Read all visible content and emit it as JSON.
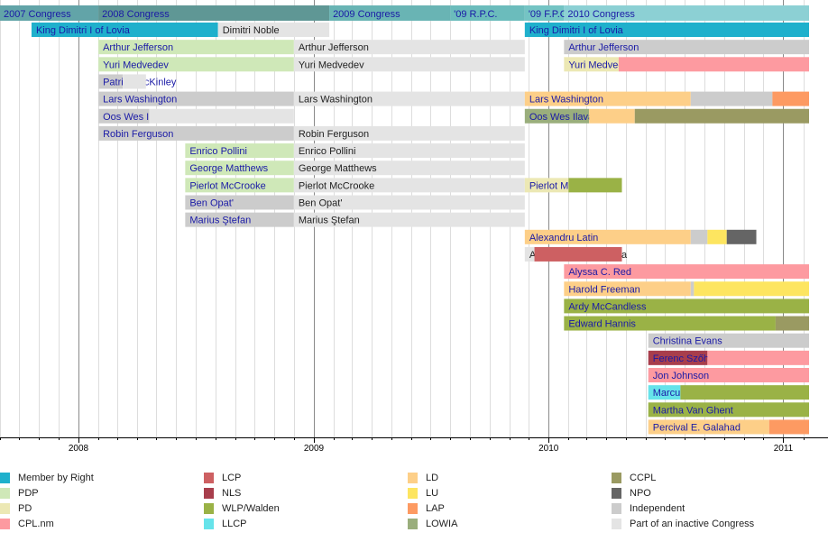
{
  "chart_data": {
    "type": "timeline",
    "x_range": [
      "2007-09-01",
      "2011-02-10"
    ],
    "x_ticks": [
      "2008",
      "2009",
      "2010",
      "2011"
    ],
    "parties": [
      {
        "key": "mbr",
        "name": "Member by Right",
        "color": "#1fb0cc"
      },
      {
        "key": "pdp",
        "name": "PDP",
        "color": "#cfe8b8"
      },
      {
        "key": "pd",
        "name": "PD",
        "color": "#ece8b4"
      },
      {
        "key": "cpl",
        "name": "CPL.nm",
        "color": "#fd9aa0"
      },
      {
        "key": "lcp",
        "name": "LCP",
        "color": "#cd6062"
      },
      {
        "key": "nls",
        "name": "NLS",
        "color": "#a83e4c"
      },
      {
        "key": "wlp",
        "name": "WLP/Walden",
        "color": "#9ab246"
      },
      {
        "key": "llcp",
        "name": "LLCP",
        "color": "#66e3ea"
      },
      {
        "key": "ld",
        "name": "LD",
        "color": "#fdcf88"
      },
      {
        "key": "lu",
        "name": "LU",
        "color": "#fde560"
      },
      {
        "key": "lap",
        "name": "LAP",
        "color": "#fd9a62"
      },
      {
        "key": "lowia",
        "name": "LOWIA",
        "color": "#9aae7c"
      },
      {
        "key": "ccpl",
        "name": "CCPL",
        "color": "#9a9a62"
      },
      {
        "key": "npo",
        "name": "NPO",
        "color": "#656565"
      },
      {
        "key": "ind",
        "name": "Independent",
        "color": "#cccccc"
      },
      {
        "key": "inactive",
        "name": "Part of an inactive Congress",
        "color": "#e4e4e4"
      }
    ],
    "congresses": [
      {
        "label": "2007 Congress",
        "start": "2007-09-01",
        "end": "2008-02-01",
        "color": "#62a4a8"
      },
      {
        "label": "2008 Congress",
        "start": "2008-02-01",
        "end": "2009-01-25",
        "color": "#5f9795"
      },
      {
        "label": "2009 Congress",
        "start": "2009-01-25",
        "end": "2009-08-01",
        "color": "#69b4b4"
      },
      {
        "label": "'09 R.P.C.",
        "start": "2009-08-01",
        "end": "2009-11-25",
        "color": "#6bbcbc"
      },
      {
        "label": "'09 F.P.C.",
        "start": "2009-11-25",
        "end": "2010-01-25",
        "color": "#74c4c4"
      },
      {
        "label": "2010 Congress",
        "start": "2010-01-25",
        "end": "2011-02-10",
        "color": "#8cd0d4"
      }
    ],
    "rows": [
      {
        "segments": [
          {
            "label": "King Dimitri I of Lovia",
            "start": "2007-10-20",
            "end": "2008-08-05",
            "party": "mbr"
          },
          {
            "label": "Dimitri Noble",
            "start": "2008-08-05",
            "end": "2009-01-25",
            "party": "inactive"
          },
          {
            "label": "King Dimitri I of Lovia",
            "start": "2009-11-25",
            "end": "2011-02-10",
            "party": "mbr"
          }
        ]
      },
      {
        "segments": [
          {
            "label": "Arthur Jefferson",
            "start": "2008-02-01",
            "end": "2008-12-01",
            "party": "pdp"
          },
          {
            "label": "Arthur Jefferson",
            "start": "2008-12-01",
            "end": "2009-11-25",
            "party": "inactive"
          },
          {
            "label": "Arthur Jefferson",
            "start": "2010-01-25",
            "end": "2011-02-10",
            "party": "ind"
          }
        ]
      },
      {
        "segments": [
          {
            "label": "Yuri Medvedev",
            "start": "2008-02-01",
            "end": "2008-12-01",
            "party": "pdp"
          },
          {
            "label": "Yuri Medvedev",
            "start": "2008-12-01",
            "end": "2009-11-25",
            "party": "inactive"
          },
          {
            "label": "Yuri Medvedev",
            "start": "2010-01-25",
            "end": "2010-04-20",
            "party": "pd"
          },
          {
            "label": "",
            "start": "2010-04-20",
            "end": "2011-02-10",
            "party": "cpl"
          }
        ]
      },
      {
        "segments": [
          {
            "label": "Patrick McKinley",
            "start": "2008-02-01",
            "end": "2008-03-10",
            "party": "ind"
          },
          {
            "label": "",
            "start": "2008-03-10",
            "end": "2008-04-15",
            "party": "inactive"
          }
        ]
      },
      {
        "segments": [
          {
            "label": "Lars Washington",
            "start": "2008-02-01",
            "end": "2008-12-01",
            "party": "ind"
          },
          {
            "label": "Lars Washington",
            "start": "2008-12-01",
            "end": "2009-11-25",
            "party": "inactive"
          },
          {
            "label": "Lars Washington",
            "start": "2009-11-25",
            "end": "2010-08-10",
            "party": "ld"
          },
          {
            "label": "",
            "start": "2010-08-10",
            "end": "2010-12-15",
            "party": "ind"
          },
          {
            "label": "",
            "start": "2010-12-15",
            "end": "2011-02-10",
            "party": "lap"
          }
        ]
      },
      {
        "segments": [
          {
            "label": "Oos Wes Ilava",
            "start": "2008-02-01",
            "end": "2008-04-20",
            "party": "ind"
          },
          {
            "label": "",
            "start": "2008-04-20",
            "end": "2008-12-01",
            "party": "inactive"
          },
          {
            "label": "Oos Wes Ilava",
            "start": "2009-11-25",
            "end": "2010-03-05",
            "party": "lowia"
          },
          {
            "label": "",
            "start": "2010-03-05",
            "end": "2010-05-15",
            "party": "ld"
          },
          {
            "label": "",
            "start": "2010-05-15",
            "end": "2011-02-10",
            "party": "ccpl"
          }
        ]
      },
      {
        "segments": [
          {
            "label": "Robin Ferguson",
            "start": "2008-02-01",
            "end": "2008-12-01",
            "party": "ind"
          },
          {
            "label": "Robin Ferguson",
            "start": "2008-12-01",
            "end": "2009-11-25",
            "party": "inactive"
          }
        ]
      },
      {
        "segments": [
          {
            "label": "Enrico Pollini",
            "start": "2008-06-15",
            "end": "2008-12-01",
            "party": "pdp"
          },
          {
            "label": "Enrico Pollini",
            "start": "2008-12-01",
            "end": "2009-11-25",
            "party": "inactive"
          }
        ]
      },
      {
        "segments": [
          {
            "label": "George Matthews",
            "start": "2008-06-15",
            "end": "2008-12-01",
            "party": "pdp"
          },
          {
            "label": "George Matthews",
            "start": "2008-12-01",
            "end": "2009-11-25",
            "party": "inactive"
          }
        ]
      },
      {
        "segments": [
          {
            "label": "Pierlot McCrooke",
            "start": "2008-06-15",
            "end": "2008-12-01",
            "party": "pdp"
          },
          {
            "label": "Pierlot McCrooke",
            "start": "2008-12-01",
            "end": "2009-11-25",
            "party": "inactive"
          },
          {
            "label": "Pierlot McCrooke",
            "start": "2009-11-25",
            "end": "2010-02-01",
            "party": "pd"
          },
          {
            "label": "",
            "start": "2010-02-01",
            "end": "2010-04-25",
            "party": "wlp"
          }
        ]
      },
      {
        "segments": [
          {
            "label": "Ben Opat'",
            "start": "2008-06-15",
            "end": "2008-12-01",
            "party": "ind"
          },
          {
            "label": "Ben Opat'",
            "start": "2008-12-01",
            "end": "2009-11-25",
            "party": "inactive"
          }
        ]
      },
      {
        "segments": [
          {
            "label": "Marius Ştefan",
            "start": "2008-06-15",
            "end": "2008-12-01",
            "party": "ind"
          },
          {
            "label": "Marius Ştefan",
            "start": "2008-12-01",
            "end": "2009-11-25",
            "party": "inactive"
          }
        ]
      },
      {
        "segments": [
          {
            "label": "Alexandru Latin",
            "start": "2009-11-25",
            "end": "2010-08-10",
            "party": "ld"
          },
          {
            "label": "",
            "start": "2010-08-10",
            "end": "2010-09-05",
            "party": "ind"
          },
          {
            "label": "",
            "start": "2010-09-05",
            "end": "2010-10-05",
            "party": "lu"
          },
          {
            "label": "",
            "start": "2010-10-05",
            "end": "2010-11-20",
            "party": "npo"
          }
        ]
      },
      {
        "segments": [
          {
            "label": "August Magnus Donia",
            "start": "2009-11-25",
            "end": "2009-12-10",
            "party": "inactive"
          },
          {
            "label": "",
            "start": "2009-12-10",
            "end": "2010-04-25",
            "party": "lcp"
          }
        ]
      },
      {
        "segments": [
          {
            "label": "Alyssa C. Red",
            "start": "2010-01-25",
            "end": "2011-02-10",
            "party": "cpl"
          }
        ]
      },
      {
        "segments": [
          {
            "label": "Harold Freeman",
            "start": "2010-01-25",
            "end": "2010-08-10",
            "party": "ld"
          },
          {
            "label": "",
            "start": "2010-08-10",
            "end": "2010-08-15",
            "party": "ind"
          },
          {
            "label": "",
            "start": "2010-08-15",
            "end": "2011-02-10",
            "party": "lu"
          }
        ]
      },
      {
        "segments": [
          {
            "label": "Ardy McCandless",
            "start": "2010-01-25",
            "end": "2011-02-10",
            "party": "wlp"
          }
        ]
      },
      {
        "segments": [
          {
            "label": "Edward Hannis",
            "start": "2010-01-25",
            "end": "2010-12-20",
            "party": "wlp"
          },
          {
            "label": "",
            "start": "2010-12-20",
            "end": "2011-02-10",
            "party": "ccpl"
          }
        ]
      },
      {
        "segments": [
          {
            "label": "Christina Evans",
            "start": "2010-06-05",
            "end": "2011-02-10",
            "party": "ind"
          }
        ]
      },
      {
        "segments": [
          {
            "label": "Ferenc Szőhad",
            "start": "2010-06-05",
            "end": "2010-09-05",
            "party": "nls"
          },
          {
            "label": "",
            "start": "2010-09-05",
            "end": "2011-02-10",
            "party": "cpl"
          }
        ]
      },
      {
        "segments": [
          {
            "label": "Jon Johnson",
            "start": "2010-06-05",
            "end": "2011-02-10",
            "party": "cpl"
          }
        ]
      },
      {
        "segments": [
          {
            "label": "Marcus Villanova",
            "start": "2010-06-05",
            "end": "2010-07-25",
            "party": "llcp"
          },
          {
            "label": "",
            "start": "2010-07-25",
            "end": "2011-02-10",
            "party": "wlp"
          }
        ]
      },
      {
        "segments": [
          {
            "label": "Martha Van Ghent",
            "start": "2010-06-05",
            "end": "2011-02-10",
            "party": "wlp"
          }
        ]
      },
      {
        "segments": [
          {
            "label": "Percival E. Galahad",
            "start": "2010-06-05",
            "end": "2010-12-10",
            "party": "ld"
          },
          {
            "label": "",
            "start": "2010-12-10",
            "end": "2011-02-10",
            "party": "lap"
          }
        ]
      }
    ]
  }
}
